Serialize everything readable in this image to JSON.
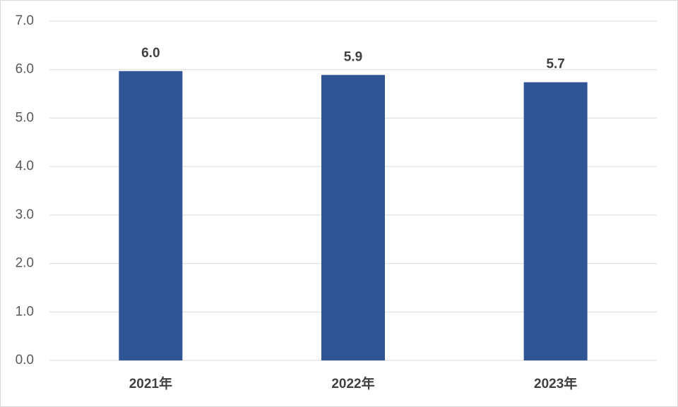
{
  "chart_data": {
    "type": "bar",
    "categories": [
      "2021年",
      "2022年",
      "2023年"
    ],
    "values": [
      5.97,
      5.89,
      5.74
    ],
    "value_labels": [
      "6.0",
      "5.9",
      "5.7"
    ],
    "color": "#2f5597",
    "ylim": [
      0,
      7
    ],
    "yticks": [
      {
        "value": 0,
        "label": "0.0"
      },
      {
        "value": 1,
        "label": "1.0"
      },
      {
        "value": 2,
        "label": "2.0"
      },
      {
        "value": 3,
        "label": "3.0"
      },
      {
        "value": 4,
        "label": "4.0"
      },
      {
        "value": 5,
        "label": "5.0"
      },
      {
        "value": 6,
        "label": "6.0"
      },
      {
        "value": 7,
        "label": "7.0"
      }
    ],
    "grid": true
  }
}
